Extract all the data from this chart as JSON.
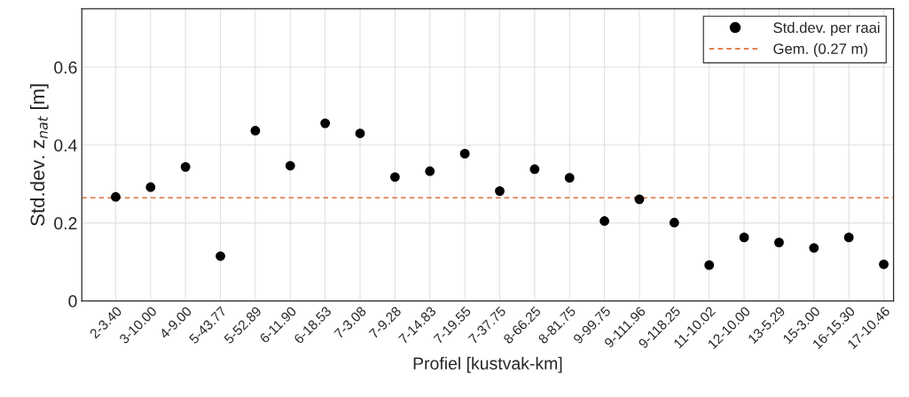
{
  "chart_data": {
    "type": "scatter",
    "xlabel": "Profiel [kustvak-km]",
    "ylabel": "Std.dev. z$_{nat}$ [m]",
    "categories": [
      "2-3.40",
      "3-10.00",
      "4-9.00",
      "5-43.77",
      "5-52.89",
      "6-11.90",
      "6-18.53",
      "7-3.08",
      "7-9.28",
      "7-14.83",
      "7-19.55",
      "7-37.75",
      "8-66.25",
      "8-81.75",
      "9-99.75",
      "9-111.96",
      "9-118.25",
      "11-10.02",
      "12-10.00",
      "13-5.29",
      "15-3.00",
      "16-15.30",
      "17-10.46"
    ],
    "series": [
      {
        "name": "Std.dev. per raai",
        "color": "#000000",
        "values": [
          0.267,
          0.292,
          0.344,
          0.115,
          0.437,
          0.347,
          0.456,
          0.43,
          0.318,
          0.333,
          0.378,
          0.282,
          0.338,
          0.316,
          0.205,
          0.261,
          0.201,
          0.092,
          0.163,
          0.15,
          0.136,
          0.163,
          0.094
        ]
      }
    ],
    "ref_lines": [
      {
        "axis": "y",
        "value": 0.265,
        "label": "Gem. (0.27 m)",
        "color": "#d95319",
        "line_style": "dashed"
      }
    ],
    "ylim": [
      0,
      0.75
    ],
    "yticks": [
      0,
      0.2,
      0.4,
      0.6
    ],
    "grid": true,
    "legend": "top right",
    "marker": "circle"
  }
}
